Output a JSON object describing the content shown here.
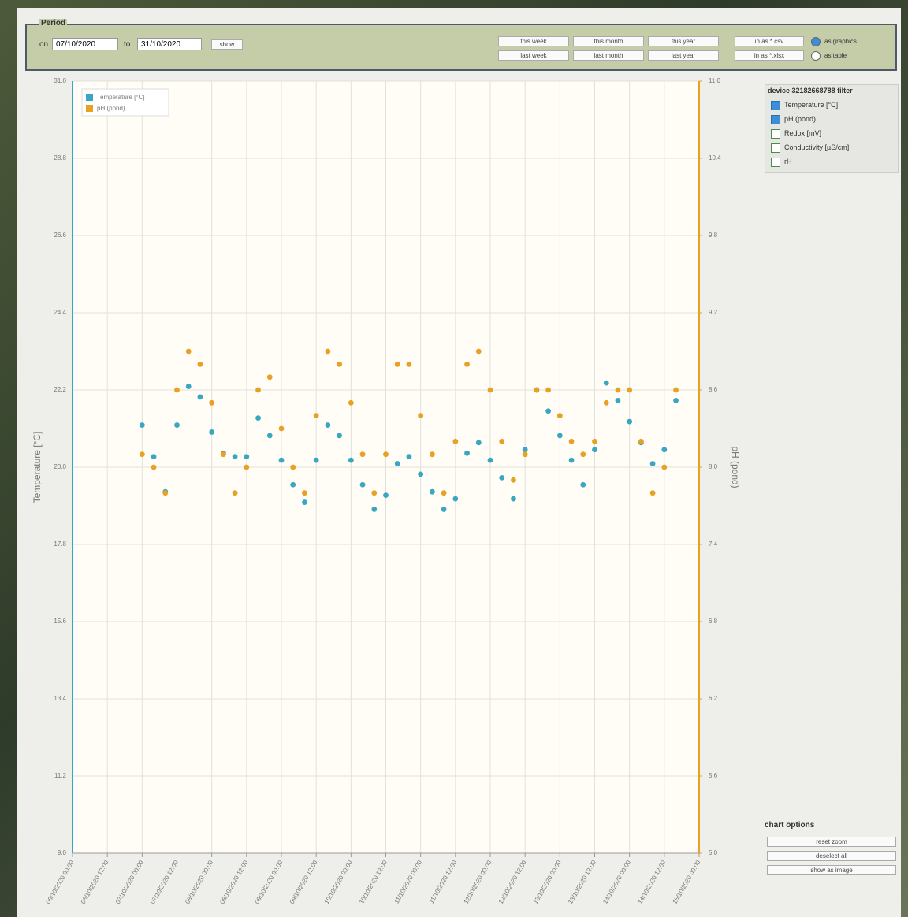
{
  "header": {
    "legend": "Period",
    "from_label": "on",
    "from_date": "07/10/2020",
    "to_label": "to",
    "to_date": "31/10/2020",
    "show_button": "show",
    "quick_buttons": [
      [
        "this week",
        "this month",
        "this year"
      ],
      [
        "last week",
        "last month",
        "last year"
      ]
    ],
    "export_buttons": [
      "in as *.csv",
      "in as *.xlsx"
    ],
    "views": [
      {
        "label": "as graphics",
        "selected": true
      },
      {
        "label": "as table",
        "selected": false
      }
    ]
  },
  "device_panel": {
    "title": "device 32182668788 filter",
    "items": [
      {
        "label": "Temperature [°C]",
        "checked": true
      },
      {
        "label": "pH (pond)",
        "checked": true
      },
      {
        "label": "Redox [mV]",
        "checked": false
      },
      {
        "label": "Conductivity [µS/cm]",
        "checked": false
      },
      {
        "label": "rH",
        "checked": false
      }
    ]
  },
  "chart_options": {
    "title": "chart options",
    "buttons": [
      "reset zoom",
      "deselect all",
      "show as image"
    ]
  },
  "chart_data": {
    "type": "scatter",
    "x": [
      "07/10/2020 00:00",
      "07/10/2020 04:00",
      "07/10/2020 08:00",
      "07/10/2020 12:00",
      "07/10/2020 16:00",
      "07/10/2020 20:00",
      "08/10/2020 00:00",
      "08/10/2020 04:00",
      "08/10/2020 08:00",
      "08/10/2020 12:00",
      "08/10/2020 16:00",
      "08/10/2020 20:00",
      "09/10/2020 00:00",
      "09/10/2020 04:00",
      "09/10/2020 08:00",
      "09/10/2020 12:00",
      "09/10/2020 16:00",
      "09/10/2020 20:00",
      "10/10/2020 00:00",
      "10/10/2020 04:00",
      "10/10/2020 08:00",
      "10/10/2020 12:00",
      "10/10/2020 16:00",
      "10/10/2020 20:00",
      "11/10/2020 00:00",
      "11/10/2020 04:00",
      "11/10/2020 08:00",
      "11/10/2020 12:00",
      "11/10/2020 16:00",
      "11/10/2020 20:00",
      "12/10/2020 00:00",
      "12/10/2020 04:00",
      "12/10/2020 08:00",
      "12/10/2020 12:00",
      "12/10/2020 16:00",
      "12/10/2020 20:00",
      "13/10/2020 00:00",
      "13/10/2020 04:00",
      "13/10/2020 08:00",
      "13/10/2020 12:00",
      "13/10/2020 16:00",
      "13/10/2020 20:00",
      "14/10/2020 00:00",
      "14/10/2020 04:00",
      "14/10/2020 08:00",
      "14/10/2020 12:00",
      "14/10/2020 16:00"
    ],
    "series": [
      {
        "name": "Temperature [°C]",
        "color": "#3aa7c2",
        "axis": "y",
        "values": [
          21.2,
          20.3,
          19.3,
          21.2,
          22.3,
          22.0,
          21.0,
          20.4,
          20.3,
          20.3,
          21.4,
          20.9,
          20.2,
          19.5,
          19.0,
          20.2,
          21.2,
          20.9,
          20.2,
          19.5,
          18.8,
          19.2,
          20.1,
          20.3,
          19.8,
          19.3,
          18.8,
          19.1,
          20.4,
          20.7,
          20.2,
          19.7,
          19.1,
          20.5,
          22.2,
          21.6,
          20.9,
          20.2,
          19.5,
          20.5,
          22.4,
          21.9,
          21.3,
          20.7,
          20.1,
          20.5,
          21.9
        ]
      },
      {
        "name": "pH (pond)",
        "color": "#e9a123",
        "axis": "y2",
        "values": [
          8.1,
          8.0,
          7.8,
          8.6,
          8.9,
          8.8,
          8.5,
          8.1,
          7.8,
          8.0,
          8.6,
          8.7,
          8.3,
          8.0,
          7.8,
          8.4,
          8.9,
          8.8,
          8.5,
          8.1,
          7.8,
          8.1,
          8.8,
          8.8,
          8.4,
          8.1,
          7.8,
          8.2,
          8.8,
          8.9,
          8.6,
          8.2,
          7.9,
          8.1,
          8.6,
          8.6,
          8.4,
          8.2,
          8.1,
          8.2,
          8.5,
          8.6,
          8.6,
          8.2,
          7.8,
          8.0,
          8.6
        ]
      }
    ],
    "xlim": [
      "06/10/2020 00:00",
      "15/10/2020 00:00"
    ],
    "xticks": [
      "06/10/2020 00:00",
      "06/10/2020 12:00",
      "07/10/2020 00:00",
      "07/10/2020 12:00",
      "08/10/2020 00:00",
      "08/10/2020 12:00",
      "09/10/2020 00:00",
      "09/10/2020 12:00",
      "10/10/2020 00:00",
      "10/10/2020 12:00",
      "11/10/2020 00:00",
      "11/10/2020 12:00",
      "12/10/2020 00:00",
      "12/10/2020 12:00",
      "13/10/2020 00:00",
      "13/10/2020 12:00",
      "14/10/2020 00:00",
      "14/10/2020 12:00",
      "15/10/2020 00:00"
    ],
    "ylim": [
      9,
      31
    ],
    "yticks": [
      {
        "value": 9,
        "label": "9.0"
      },
      11.2,
      13.4,
      15.6,
      17.8,
      {
        "value": 20,
        "label": "20.0"
      },
      22.2,
      24.4,
      26.6,
      28.8,
      {
        "value": 31,
        "label": "31.0"
      }
    ],
    "y2lim": [
      5,
      11
    ],
    "y2ticks": [
      {
        "value": 5,
        "label": "5.0"
      },
      5.6,
      6.2,
      6.8,
      7.4,
      {
        "value": 8,
        "label": "8.0"
      },
      8.6,
      9.2,
      9.8,
      10.4,
      {
        "value": 11,
        "label": "11.0"
      }
    ],
    "ylabel": "Temperature [°C]",
    "y2label": "pH (pond)",
    "grid": true,
    "legend": "upper left"
  }
}
